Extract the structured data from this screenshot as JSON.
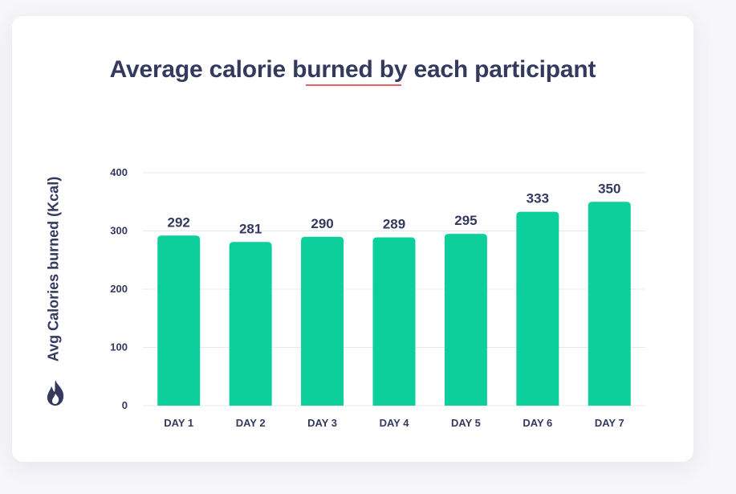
{
  "chart_data": {
    "type": "bar",
    "title": "Average calorie burned by each participant",
    "xlabel": "",
    "ylabel": "Avg Calories burned (Kcal)",
    "categories": [
      "DAY 1",
      "DAY 2",
      "DAY 3",
      "DAY 4",
      "DAY 5",
      "DAY 6",
      "DAY 7"
    ],
    "values": [
      292,
      281,
      290,
      289,
      295,
      333,
      350
    ],
    "yticks": [
      0,
      100,
      200,
      300,
      400
    ],
    "ylim": [
      0,
      400
    ],
    "grid": true,
    "colors": {
      "bar": "#0ccf9b",
      "accent": "#e8606a",
      "text": "#34395e"
    }
  },
  "icons": {
    "ylabel_icon": "flame-icon"
  }
}
